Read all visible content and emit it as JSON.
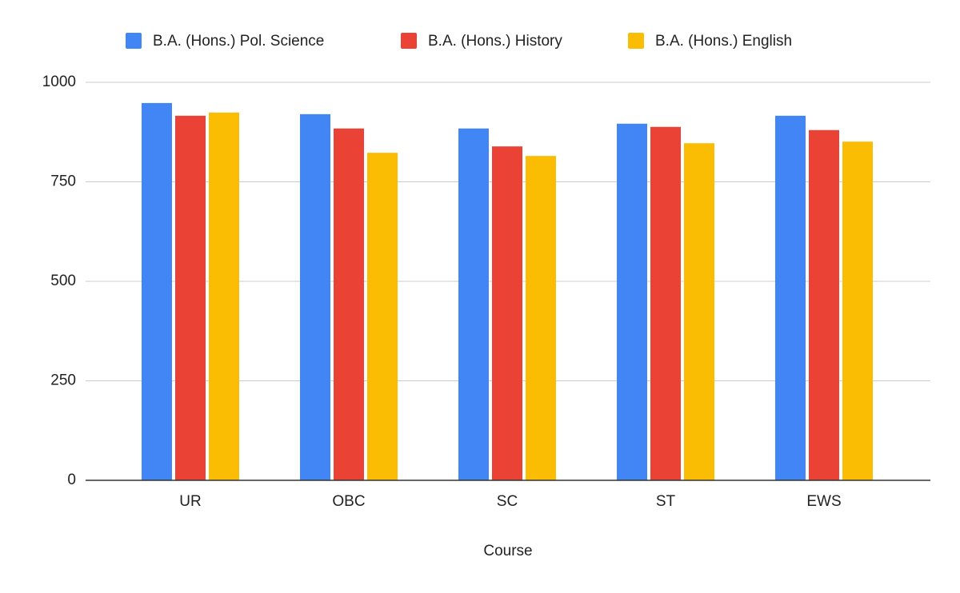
{
  "chart_data": {
    "type": "bar",
    "x_label": "Course",
    "categories": [
      "UR",
      "OBC",
      "SC",
      "ST",
      "EWS"
    ],
    "series": [
      {
        "name": "B.A. (Hons.) Pol. Science",
        "color": "#4285f4",
        "values": [
          948,
          920,
          884,
          896,
          916
        ]
      },
      {
        "name": "B.A. (Hons.) History",
        "color": "#ea4335",
        "values": [
          916,
          884,
          839,
          888,
          880
        ]
      },
      {
        "name": "B.A. (Hons.) English",
        "color": "#fbbc04",
        "values": [
          924,
          823,
          815,
          847,
          851
        ]
      }
    ],
    "ylim": [
      0,
      1000
    ],
    "yticks": [
      0,
      250,
      500,
      750,
      1000
    ],
    "grid": true,
    "legend": "top"
  }
}
